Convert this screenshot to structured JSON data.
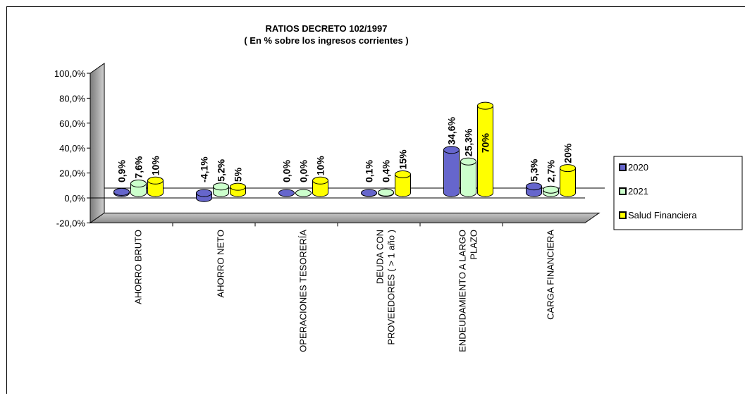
{
  "chart_data": {
    "type": "bar",
    "title": "RATIOS DECRETO  102/1997",
    "subtitle": "( En % sobre los ingresos corrientes )",
    "xlabel": "",
    "ylabel": "",
    "ylim": [
      -20,
      100
    ],
    "yticks": [
      "100,0%",
      "80,0%",
      "60,0%",
      "40,0%",
      "20,0%",
      "0,0%",
      "-20,0%"
    ],
    "yticks_values": [
      100,
      80,
      60,
      40,
      20,
      0,
      -20
    ],
    "categories": [
      [
        "AHORRO BRUTO"
      ],
      [
        "AHORRO NETO"
      ],
      [
        "OPERACIONES TESORERÍA"
      ],
      [
        "DEUDA CON",
        "PROVEEDORES ( > 1  año )"
      ],
      [
        "ENDEUDAMIENTO A LARGO",
        "PLAZO"
      ],
      [
        "CARGA FINANCIERA"
      ]
    ],
    "series": [
      {
        "name": "2020",
        "values": [
          0.9,
          -4.1,
          0.0,
          0.1,
          34.6,
          5.3
        ],
        "labels": [
          "0,9%",
          "-4,1%",
          "0,0%",
          "0,1%",
          "34,6%",
          "5,3%"
        ],
        "color": "#6666cc"
      },
      {
        "name": "2021",
        "values": [
          7.6,
          5.2,
          0.0,
          0.4,
          25.3,
          2.7
        ],
        "labels": [
          "7,6%",
          "5,2%",
          "0,0%",
          "0,4%",
          "25,3%",
          "2,7%"
        ],
        "color": "#ccffcc"
      },
      {
        "name": "Salud Financiera",
        "values": [
          10,
          5,
          10,
          15,
          70,
          20
        ],
        "labels": [
          "10%",
          "5%",
          "10%",
          "15%",
          "70%",
          "20%"
        ],
        "color": "#ffff00"
      }
    ],
    "legend_position": "right",
    "grid": false
  }
}
